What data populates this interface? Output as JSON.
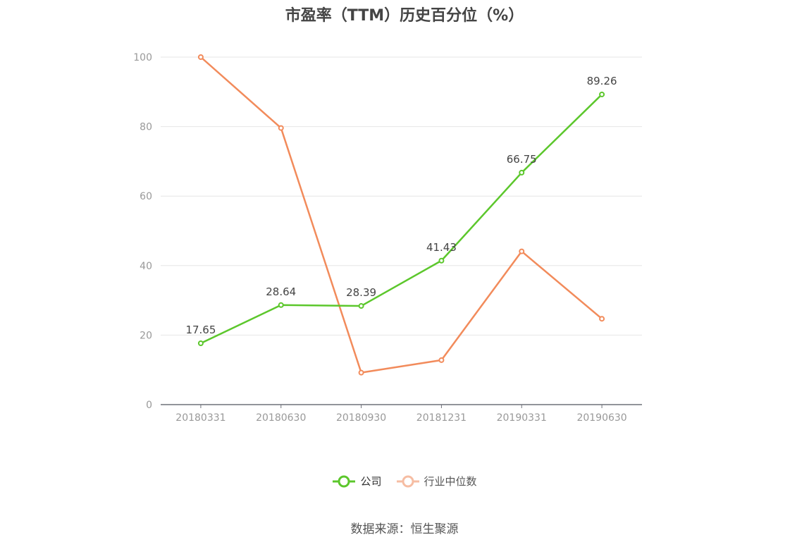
{
  "chart_data": {
    "type": "line",
    "title": "市盈率（TTM）历史百分位（%）",
    "categories": [
      "20180331",
      "20180630",
      "20180930",
      "20181231",
      "20190331",
      "20190630"
    ],
    "ylim": [
      0,
      100
    ],
    "yticks": [
      0,
      20,
      40,
      60,
      80,
      100
    ],
    "grid": true,
    "legend_position": "bottom",
    "series": [
      {
        "name": "公司",
        "color": "#5cc72c",
        "values": [
          17.65,
          28.64,
          28.39,
          41.43,
          66.75,
          89.26
        ],
        "show_labels": true
      },
      {
        "name": "行业中位数",
        "color": "#f28b5b",
        "values": [
          100,
          79.6,
          9.2,
          12.8,
          44.1,
          24.7
        ],
        "show_labels": false
      }
    ]
  },
  "legend": {
    "company": "公司",
    "industry": "行业中位数"
  },
  "source": "数据来源：恒生聚源"
}
